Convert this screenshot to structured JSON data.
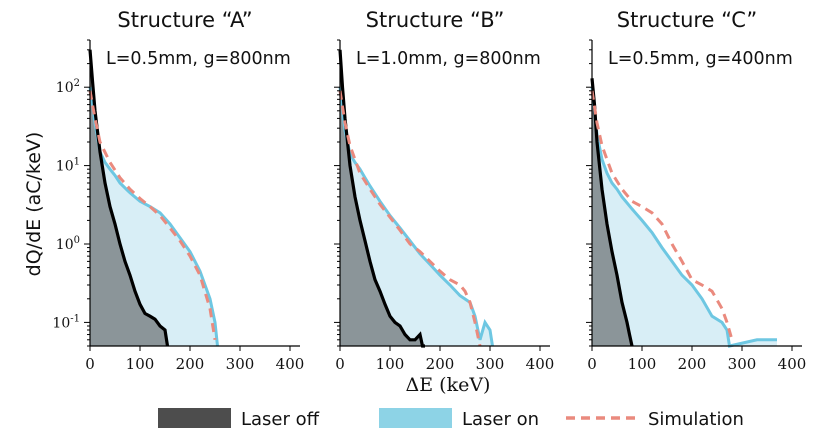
{
  "chart_data": [
    {
      "type": "area",
      "title": "Structure “A”",
      "subtitle": "L=0.5mm, g=800nm",
      "xlabel": "ΔE (keV)",
      "ylabel": "dQ/dE (aC/keV)",
      "xlim": [
        0,
        420
      ],
      "ylim": [
        0.05,
        400
      ],
      "yscale": "log",
      "xticks": [
        "0",
        "100",
        "200",
        "300",
        "400"
      ],
      "yticks": [
        "10^2",
        "10^1",
        "10^0",
        "10^-1"
      ],
      "series": [
        {
          "name": "Laser off",
          "x": [
            0,
            5,
            10,
            20,
            30,
            40,
            50,
            60,
            70,
            80,
            90,
            100,
            110,
            120,
            130,
            140,
            150,
            155
          ],
          "values": [
            300,
            120,
            50,
            15,
            6,
            3,
            1.8,
            1.0,
            0.6,
            0.4,
            0.25,
            0.17,
            0.13,
            0.12,
            0.11,
            0.09,
            0.08,
            0.05
          ]
        },
        {
          "name": "Laser on",
          "x": [
            0,
            5,
            10,
            20,
            30,
            40,
            50,
            60,
            80,
            100,
            120,
            140,
            160,
            180,
            200,
            220,
            240,
            250,
            255
          ],
          "values": [
            100,
            60,
            35,
            15,
            11,
            9,
            7.5,
            6,
            4.5,
            3.5,
            3,
            2.5,
            1.8,
            1.2,
            0.8,
            0.45,
            0.2,
            0.1,
            0.05
          ]
        },
        {
          "name": "Simulation",
          "x": [
            0,
            10,
            20,
            40,
            60,
            80,
            100,
            120,
            140,
            160,
            180,
            200,
            220,
            240,
            250
          ],
          "values": [
            90,
            40,
            20,
            11,
            7,
            5,
            3.8,
            3,
            2.3,
            1.6,
            1.1,
            0.7,
            0.4,
            0.15,
            0.06
          ]
        }
      ]
    },
    {
      "type": "area",
      "title": "Structure “B”",
      "subtitle": "L=1.0mm, g=800nm",
      "xlim": [
        0,
        420
      ],
      "ylim": [
        0.05,
        400
      ],
      "yscale": "log",
      "xticks": [
        "0",
        "100",
        "200",
        "300",
        "400"
      ],
      "series": [
        {
          "name": "Laser off",
          "x": [
            0,
            5,
            10,
            20,
            30,
            40,
            50,
            60,
            70,
            80,
            90,
            100,
            110,
            120,
            130,
            140,
            150,
            160,
            165,
            170
          ],
          "values": [
            300,
            100,
            40,
            10,
            4,
            2,
            1.1,
            0.6,
            0.35,
            0.25,
            0.17,
            0.12,
            0.1,
            0.09,
            0.07,
            0.06,
            0.06,
            0.07,
            0.05,
            0.05
          ]
        },
        {
          "name": "Laser on",
          "x": [
            0,
            5,
            10,
            20,
            30,
            40,
            50,
            60,
            80,
            100,
            120,
            140,
            160,
            180,
            200,
            220,
            240,
            260,
            270,
            280,
            290,
            300,
            305
          ],
          "values": [
            100,
            50,
            28,
            14,
            11,
            9,
            7,
            5.5,
            3.5,
            2.3,
            1.6,
            1.1,
            0.75,
            0.55,
            0.4,
            0.3,
            0.22,
            0.18,
            0.12,
            0.06,
            0.1,
            0.08,
            0.05
          ]
        },
        {
          "name": "Simulation",
          "x": [
            0,
            10,
            20,
            40,
            60,
            80,
            100,
            120,
            140,
            160,
            180,
            200,
            220,
            240,
            250,
            260,
            270,
            280
          ],
          "values": [
            90,
            35,
            18,
            8,
            5,
            3.2,
            2.2,
            1.5,
            1.0,
            0.8,
            0.6,
            0.45,
            0.35,
            0.3,
            0.25,
            0.18,
            0.1,
            0.05
          ]
        }
      ]
    },
    {
      "type": "area",
      "title": "Structure “C”",
      "subtitle": "L=0.5mm, g=400nm",
      "xlim": [
        0,
        420
      ],
      "ylim": [
        0.05,
        400
      ],
      "yscale": "log",
      "xticks": [
        "0",
        "100",
        "200",
        "300",
        "400"
      ],
      "series": [
        {
          "name": "Laser off",
          "x": [
            0,
            5,
            10,
            20,
            30,
            40,
            50,
            60,
            70,
            75,
            80
          ],
          "values": [
            130,
            60,
            20,
            5,
            1.8,
            0.8,
            0.4,
            0.18,
            0.1,
            0.07,
            0.05
          ]
        },
        {
          "name": "Laser on",
          "x": [
            0,
            5,
            10,
            20,
            30,
            40,
            50,
            60,
            80,
            100,
            120,
            140,
            160,
            180,
            200,
            220,
            240,
            260,
            270,
            275,
            330,
            340,
            350,
            360,
            370
          ],
          "values": [
            100,
            50,
            25,
            12,
            8,
            6,
            5,
            4,
            2.8,
            2.0,
            1.4,
            0.9,
            0.6,
            0.4,
            0.3,
            0.2,
            0.12,
            0.1,
            0.08,
            0.05,
            0.06,
            0.06,
            0.06,
            0.06,
            0.06
          ]
        },
        {
          "name": "Simulation",
          "x": [
            0,
            10,
            20,
            40,
            60,
            80,
            100,
            120,
            140,
            160,
            180,
            200,
            220,
            240,
            260,
            270,
            280
          ],
          "values": [
            90,
            35,
            18,
            8,
            5,
            3.5,
            3,
            2.5,
            1.8,
            1.0,
            0.6,
            0.35,
            0.3,
            0.25,
            0.15,
            0.1,
            0.06
          ]
        }
      ]
    }
  ],
  "legend": {
    "items": [
      "Laser off",
      "Laser on",
      "Simulation"
    ],
    "placement": "bottom"
  },
  "colors": {
    "laser_off_fill": "#4d4d4d",
    "laser_off_line": "#000000",
    "laser_on_fill": "#d8eef6",
    "laser_on_line": "#6ec7e2",
    "simulation_line": "#ea8a7e"
  }
}
